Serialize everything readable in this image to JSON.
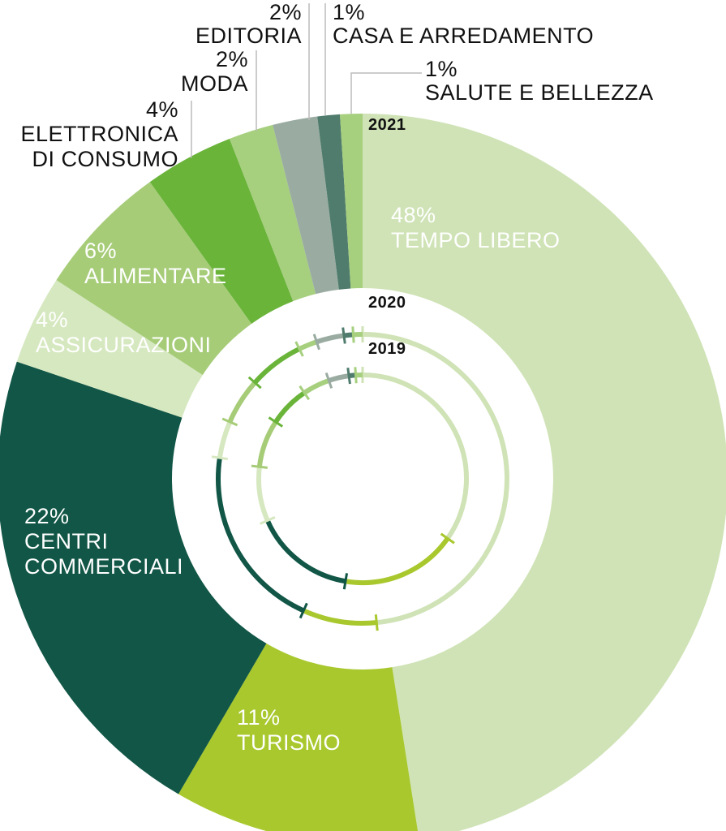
{
  "chart_data": {
    "type": "pie",
    "variant": "nested-donut",
    "rings": [
      {
        "year": "2021",
        "segments": [
          {
            "category": "TEMPO LIBERO",
            "label_pct": "48%",
            "value": 48,
            "color": "#cfe3b6"
          },
          {
            "category": "TURISMO",
            "label_pct": "11%",
            "value": 11,
            "color": "#a8c82e"
          },
          {
            "category": [
              "CENTRI",
              "COMMERCIALI"
            ],
            "label_pct": "22%",
            "value": 22,
            "color": "#115646"
          },
          {
            "category": "ASSICURAZIONI",
            "label_pct": "4%",
            "value": 4,
            "color": "#d6e8c0"
          },
          {
            "category": "ALIMENTARE",
            "label_pct": "6%",
            "value": 6,
            "color": "#a6cc78"
          },
          {
            "category": [
              "ELETTRONICA",
              "DI CONSUMO"
            ],
            "label_pct": "4%",
            "value": 4,
            "color": "#6ab43a"
          },
          {
            "category": "MODA",
            "label_pct": "2%",
            "value": 2,
            "color": "#a6cf7e"
          },
          {
            "category": "EDITORIA",
            "label_pct": "2%",
            "value": 2,
            "color": "#9aaca2"
          },
          {
            "category": "CASA E ARREDAMENTO",
            "label_pct": "1%",
            "value": 1,
            "color": "#4f7c6c"
          },
          {
            "category": "SALUTE E BELLEZZA",
            "label_pct": "1%",
            "value": 1,
            "color": "#a6cf7e"
          }
        ]
      },
      {
        "year": "2020",
        "segments": [
          {
            "category": "TEMPO LIBERO",
            "value": 47,
            "color": "#cfe3b6"
          },
          {
            "category": "TURISMO",
            "value": 8,
            "color": "#a8c82e"
          },
          {
            "category": "CENTRI COMMERCIALI",
            "value": 20,
            "color": "#115646"
          },
          {
            "category": "ASSICURAZIONI",
            "value": 4,
            "color": "#d6e8c0"
          },
          {
            "category": "ALIMENTARE",
            "value": 5,
            "color": "#a6cc78"
          },
          {
            "category": "ELETTRONICA DI CONSUMO",
            "value": 6,
            "color": "#6ab43a"
          },
          {
            "category": "MODA",
            "value": 2,
            "color": "#a6cf7e"
          },
          {
            "category": "EDITORIA",
            "value": 3,
            "color": "#9aaca2"
          },
          {
            "category": "CASA E ARREDAMENTO",
            "value": 1,
            "color": "#4f7c6c"
          },
          {
            "category": "SALUTE E BELLEZZA",
            "value": 1,
            "color": "#a6cf7e"
          }
        ]
      },
      {
        "year": "2019",
        "segments": [
          {
            "category": "TEMPO LIBERO",
            "value": 33,
            "color": "#cfe3b6"
          },
          {
            "category": "TURISMO",
            "value": 17,
            "color": "#a8c82e"
          },
          {
            "category": "CENTRI COMMERCIALI",
            "value": 15,
            "color": "#115646"
          },
          {
            "category": "ASSICURAZIONI",
            "value": 8,
            "color": "#d6e8c0"
          },
          {
            "category": "ALIMENTARE",
            "value": 7,
            "color": "#a6cc78"
          },
          {
            "category": "ELETTRONICA DI CONSUMO",
            "value": 6,
            "color": "#6ab43a"
          },
          {
            "category": "MODA",
            "value": 4,
            "color": "#a6cf7e"
          },
          {
            "category": "EDITORIA",
            "value": 3,
            "color": "#9aaca2"
          },
          {
            "category": "CASA E ARREDAMENTO",
            "value": 1,
            "color": "#4f7c6c"
          },
          {
            "category": "SALUTE E BELLEZZA",
            "value": 1,
            "color": "#a6cf7e"
          }
        ]
      }
    ]
  }
}
